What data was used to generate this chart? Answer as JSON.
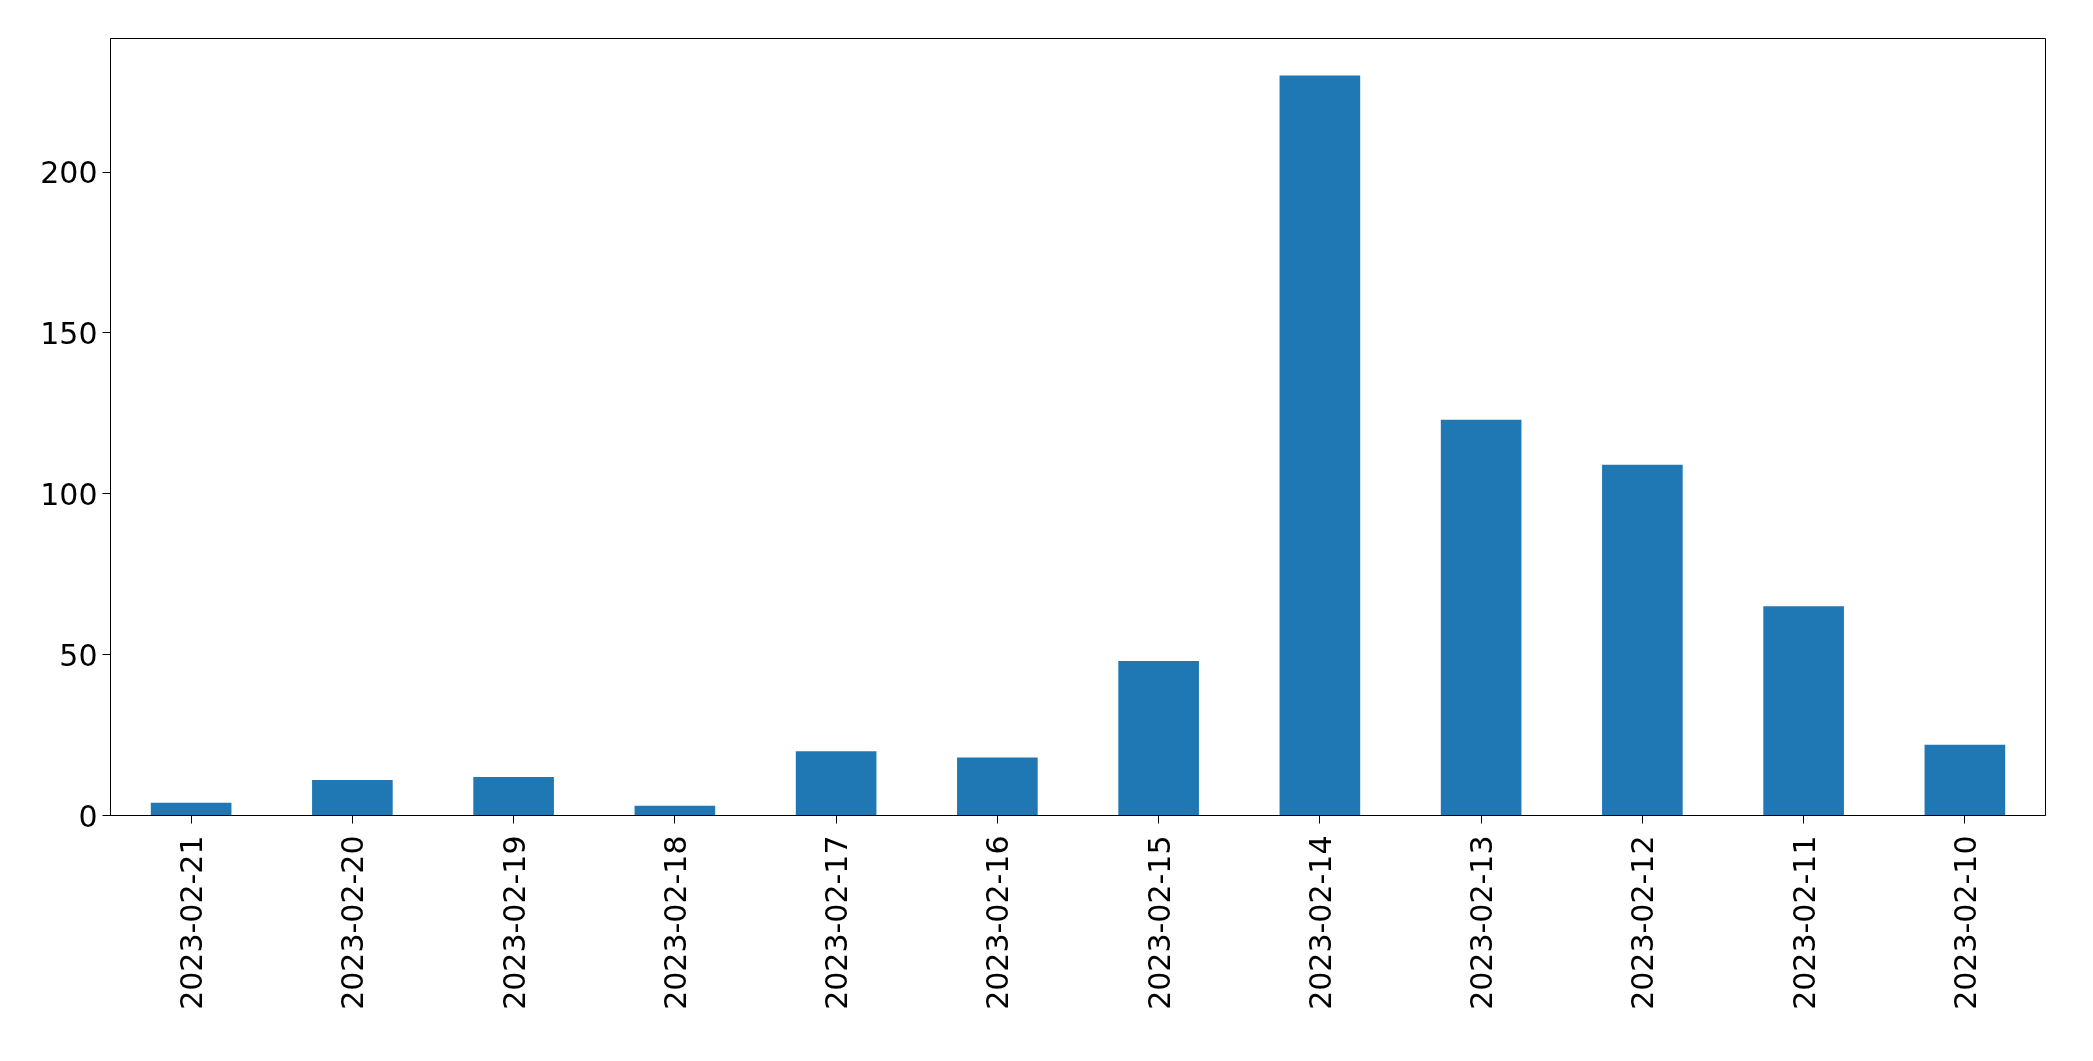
{
  "chart_data": {
    "type": "bar",
    "categories": [
      "2023-02-21",
      "2023-02-20",
      "2023-02-19",
      "2023-02-18",
      "2023-02-17",
      "2023-02-16",
      "2023-02-15",
      "2023-02-14",
      "2023-02-13",
      "2023-02-12",
      "2023-02-11",
      "2023-02-10"
    ],
    "values": [
      4,
      11,
      12,
      3,
      20,
      18,
      48,
      230,
      123,
      109,
      65,
      22
    ],
    "color": "#1f77b4",
    "ylim": [
      0,
      241.5
    ],
    "yticks": [
      0,
      50,
      100,
      150,
      200
    ],
    "grid": false
  }
}
